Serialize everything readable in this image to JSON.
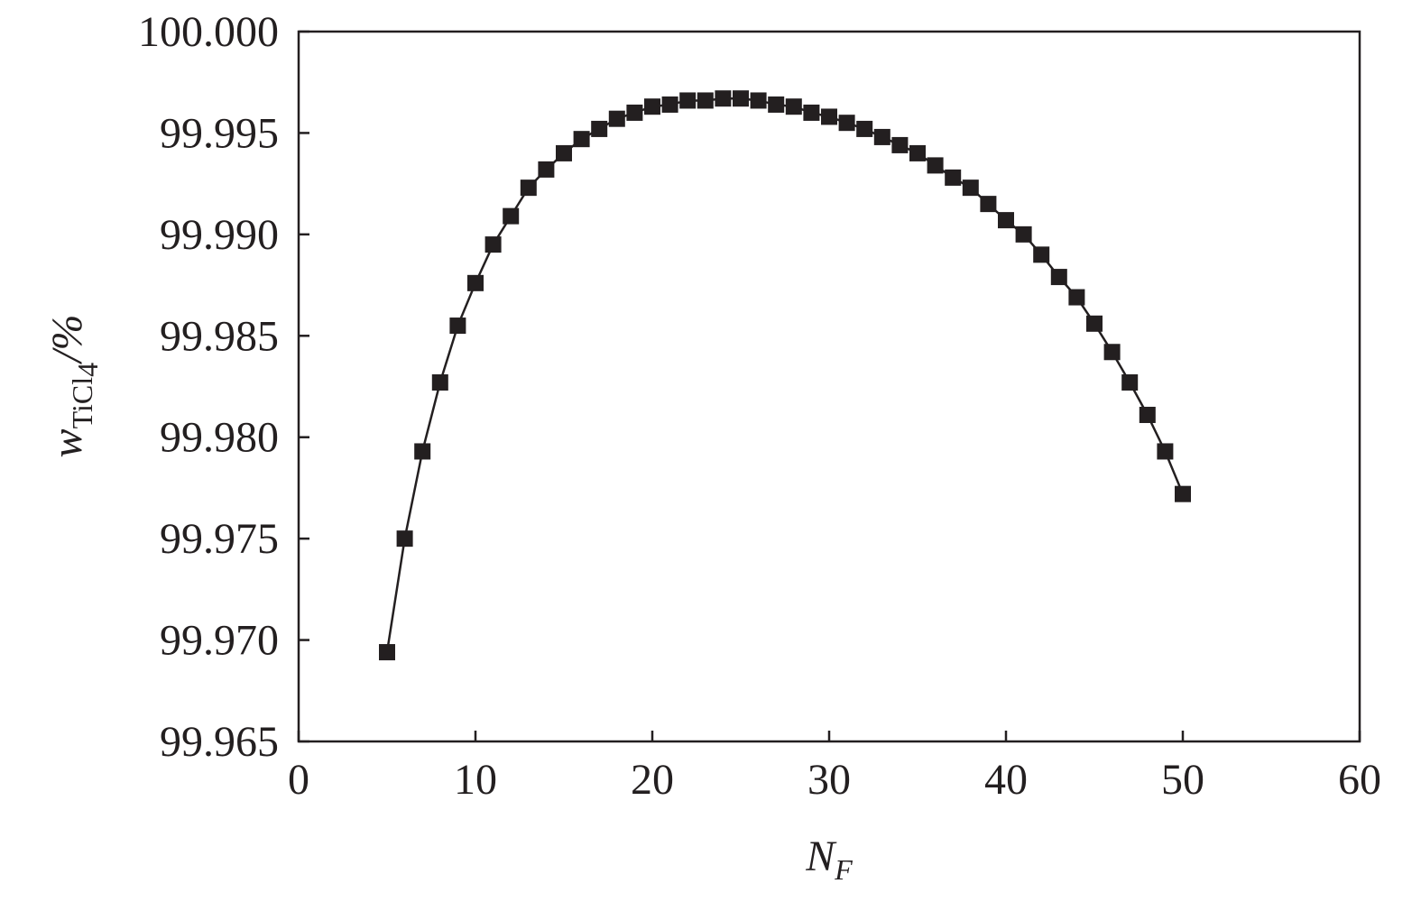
{
  "chart_data": {
    "type": "line",
    "xlabel": "N",
    "xlabel_sub": "F",
    "ylabel": "w",
    "ylabel_sub": "TiCl",
    "ylabel_subsub": "4",
    "ylabel_unit": "/%",
    "x": [
      5,
      6,
      7,
      8,
      9,
      10,
      11,
      12,
      13,
      14,
      15,
      16,
      17,
      18,
      19,
      20,
      21,
      22,
      23,
      24,
      25,
      26,
      27,
      28,
      29,
      30,
      31,
      32,
      33,
      34,
      35,
      36,
      37,
      38,
      39,
      40,
      41,
      42,
      43,
      44,
      45,
      46,
      47,
      48,
      49,
      50
    ],
    "series": [
      {
        "color": "#231f20",
        "marker": "square",
        "values": [
          99.9694,
          99.975,
          99.9793,
          99.9827,
          99.9855,
          99.9876,
          99.9895,
          99.9909,
          99.9923,
          99.9932,
          99.994,
          99.9947,
          99.9952,
          99.9957,
          99.996,
          99.9963,
          99.9964,
          99.9966,
          99.9966,
          99.9967,
          99.9967,
          99.9966,
          99.9964,
          99.9963,
          99.996,
          99.9958,
          99.9955,
          99.9952,
          99.9948,
          99.9944,
          99.994,
          99.9934,
          99.9928,
          99.9923,
          99.9915,
          99.9907,
          99.99,
          99.989,
          99.9879,
          99.9869,
          99.9856,
          99.9842,
          99.9827,
          99.9811,
          99.9793,
          99.9772
        ]
      }
    ],
    "xlim": [
      0,
      60
    ],
    "xticks": [
      0,
      10,
      20,
      30,
      40,
      50,
      60
    ],
    "ylim": [
      99.965,
      100.0
    ],
    "yticks": [
      99.965,
      {
        "value": 99.97,
        "label": "99.970"
      },
      99.975,
      {
        "value": 99.98,
        "label": "99.980"
      },
      99.985,
      {
        "value": 99.99,
        "label": "99.990"
      },
      99.995,
      {
        "value": 100.0,
        "label": "100.000"
      }
    ],
    "grid": false
  }
}
